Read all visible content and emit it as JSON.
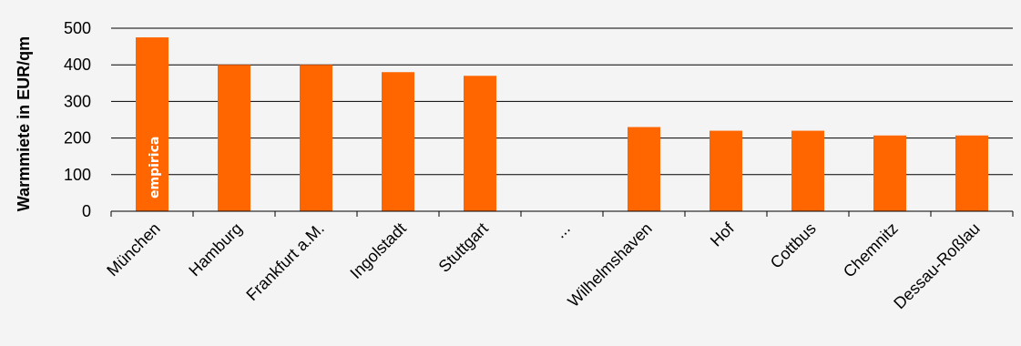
{
  "chart_data": {
    "type": "bar",
    "categories": [
      "München",
      "Hamburg",
      "Frankfurt a.M.",
      "Ingolstadt",
      "Stuttgart",
      "...",
      "Wilhelmshaven",
      "Hof",
      "Cottbus",
      "Chemnitz",
      "Dessau-Roßlau"
    ],
    "values": [
      475,
      400,
      400,
      380,
      370,
      null,
      230,
      220,
      220,
      207,
      207
    ],
    "title": "",
    "xlabel": "",
    "ylabel": "Warmmiete in EUR/qm",
    "ylim": [
      0,
      500
    ],
    "yticks": [
      0,
      100,
      200,
      300,
      400,
      500
    ],
    "grid": true,
    "legend": "none",
    "bar_color": "#ff6600"
  },
  "watermark": "empirica"
}
